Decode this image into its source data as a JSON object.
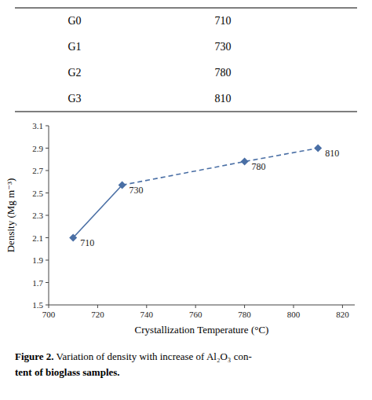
{
  "chart_data": {
    "type": "line",
    "table": {
      "labels": [
        "G0",
        "G1",
        "G2",
        "G3"
      ],
      "values": [
        710,
        730,
        780,
        810
      ]
    },
    "x": [
      710,
      730,
      780,
      810
    ],
    "values": [
      2.1,
      2.57,
      2.78,
      2.9
    ],
    "annotations": [
      "710",
      "730",
      "780",
      "810"
    ],
    "color": "#4a6fa5",
    "marker": "diamond",
    "line_style": "dashed",
    "xlabel": "Crystallization Temperature (°C)",
    "ylabel": "Density (Mg m⁻³)",
    "xlim": [
      700,
      825
    ],
    "ylim": [
      1.5,
      3.1
    ],
    "xticks": [
      700,
      720,
      740,
      760,
      780,
      800,
      820
    ],
    "yticks": [
      1.5,
      1.7,
      1.9,
      2.1,
      2.3,
      2.5,
      2.7,
      2.9,
      3.1
    ],
    "grid": false,
    "caption": {
      "bold": "Figure 2.",
      "normal": " Variation of density with increase of Al₂O₃ con-",
      "line2": "tent of bioglass samples."
    }
  }
}
